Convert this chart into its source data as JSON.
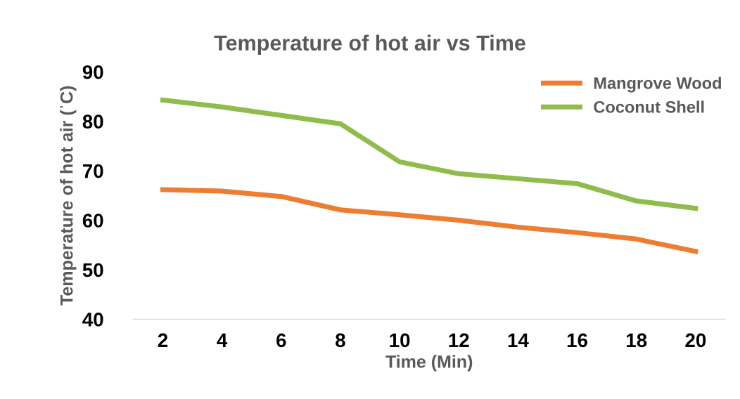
{
  "chart_data": {
    "type": "line",
    "title": "Temperature of hot air vs Time",
    "xlabel": "Time (Min)",
    "ylabel": "Temperature of hot air (ˈC)",
    "categories": [
      "2",
      "4",
      "6",
      "8",
      "10",
      "12",
      "14",
      "16",
      "18",
      "20"
    ],
    "series": [
      {
        "name": "Mangrove Wood",
        "color": "#ed7d31",
        "values": [
          66.2,
          65.9,
          64.8,
          62.1,
          61.1,
          60.0,
          58.6,
          57.5,
          56.2,
          53.7
        ]
      },
      {
        "name": "Coconut Shell",
        "color": "#8fbc4a",
        "values": [
          84.3,
          82.9,
          81.2,
          79.5,
          71.8,
          69.4,
          68.4,
          67.4,
          63.9,
          62.4
        ]
      }
    ],
    "ylim": [
      40,
      90
    ],
    "yticks": [
      40,
      50,
      60,
      70,
      80,
      90
    ],
    "grid": false,
    "legend": "top right",
    "marker": "none",
    "line_style": "solid"
  }
}
